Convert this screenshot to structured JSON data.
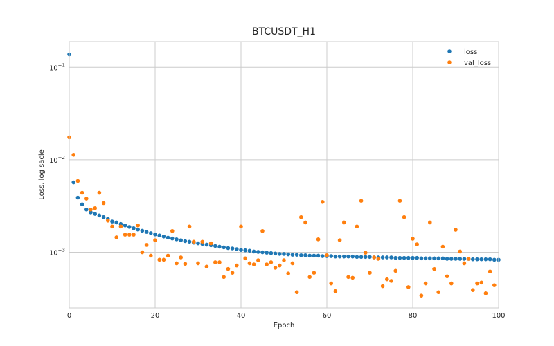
{
  "chart_data": {
    "type": "scatter",
    "title": "BTCUSDT_H1",
    "xlabel": "Epoch",
    "ylabel": "Loss, log sacle",
    "xlim": [
      0,
      100
    ],
    "ylim": [
      0.00025,
      0.19
    ],
    "yscale": "log",
    "grid": true,
    "legend_position": "top-right",
    "x_ticks": [
      0,
      20,
      40,
      60,
      80,
      100
    ],
    "y_ticks": [
      {
        "value": 0.001,
        "base": "10",
        "exp": "−3"
      },
      {
        "value": 0.01,
        "base": "10",
        "exp": "−2"
      },
      {
        "value": 0.1,
        "base": "10",
        "exp": "−1"
      }
    ],
    "series": [
      {
        "name": "loss",
        "color": "#1f77b4",
        "values": [
          0.138,
          0.0057,
          0.0039,
          0.0033,
          0.0029,
          0.0027,
          0.0026,
          0.0025,
          0.0024,
          0.0023,
          0.00215,
          0.0021,
          0.00202,
          0.00195,
          0.00188,
          0.00182,
          0.00176,
          0.00171,
          0.00166,
          0.00161,
          0.00156,
          0.00152,
          0.00148,
          0.00144,
          0.00141,
          0.00138,
          0.00135,
          0.00132,
          0.0013,
          0.00127,
          0.00125,
          0.00123,
          0.00121,
          0.00119,
          0.00117,
          0.00115,
          0.00113,
          0.00111,
          0.0011,
          0.00108,
          0.00106,
          0.00105,
          0.00104,
          0.00102,
          0.00101,
          0.001,
          0.00099,
          0.00098,
          0.00097,
          0.00096,
          0.00096,
          0.00095,
          0.00094,
          0.00094,
          0.00093,
          0.00093,
          0.00092,
          0.00092,
          0.00092,
          0.00091,
          0.00091,
          0.00091,
          0.0009,
          0.0009,
          0.0009,
          0.0009,
          0.0009,
          0.00089,
          0.00089,
          0.00089,
          0.00089,
          0.00088,
          0.00088,
          0.00088,
          0.00088,
          0.00088,
          0.00087,
          0.00087,
          0.00087,
          0.00087,
          0.00087,
          0.00087,
          0.00086,
          0.00086,
          0.00086,
          0.00086,
          0.00086,
          0.00086,
          0.00085,
          0.00085,
          0.00085,
          0.00085,
          0.00085,
          0.00085,
          0.00084,
          0.00084,
          0.00084,
          0.00084,
          0.00084,
          0.00083,
          0.00083
        ]
      },
      {
        "name": "val_loss",
        "color": "#ff7f0e",
        "values": [
          0.0175,
          0.0113,
          0.0059,
          0.0044,
          0.0038,
          0.0029,
          0.003,
          0.0044,
          0.0034,
          0.0022,
          0.0019,
          0.00145,
          0.0019,
          0.00155,
          0.00155,
          0.00155,
          0.00195,
          0.001,
          0.0012,
          0.00092,
          0.00135,
          0.00083,
          0.00083,
          0.00092,
          0.0017,
          0.00076,
          0.00088,
          0.00075,
          0.0019,
          0.0013,
          0.00076,
          0.0013,
          0.0007,
          0.00125,
          0.00078,
          0.00078,
          0.00054,
          0.00066,
          0.0006,
          0.00072,
          0.0019,
          0.00086,
          0.00076,
          0.00074,
          0.00082,
          0.0017,
          0.00074,
          0.00078,
          0.00068,
          0.00072,
          0.00082,
          0.00059,
          0.00076,
          0.00037,
          0.0024,
          0.0021,
          0.00054,
          0.0006,
          0.00138,
          0.0035,
          0.00093,
          0.00046,
          0.00038,
          0.00135,
          0.0021,
          0.00054,
          0.00053,
          0.0019,
          0.0036,
          0.00099,
          0.0006,
          0.00088,
          0.00085,
          0.00043,
          0.00051,
          0.00049,
          0.00063,
          0.0036,
          0.0024,
          0.00042,
          0.0014,
          0.00122,
          0.00034,
          0.00046,
          0.0021,
          0.00066,
          0.00037,
          0.00115,
          0.00055,
          0.00046,
          0.00175,
          0.00102,
          0.00076,
          0.00085,
          0.00039,
          0.00046,
          0.00047,
          0.00036,
          0.00062,
          0.00044
        ]
      }
    ]
  }
}
